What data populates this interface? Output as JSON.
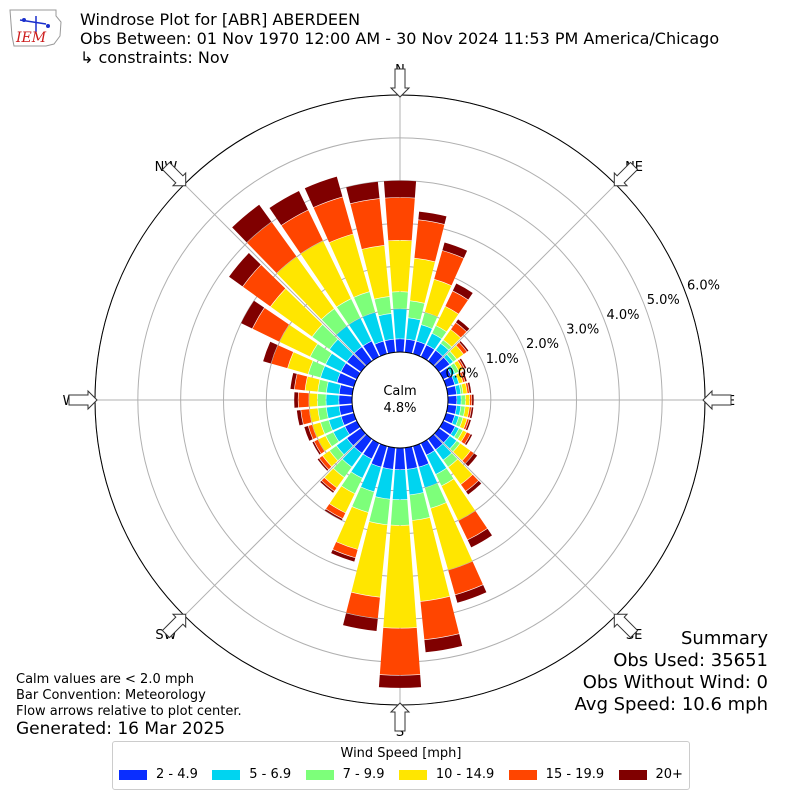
{
  "header": {
    "title": "Windrose Plot for [ABR] ABERDEEN",
    "obs_between": "Obs Between: 01 Nov 1970 12:00 AM - 30 Nov 2024 11:53 PM America/Chicago",
    "constraints": "↳ constraints: Nov"
  },
  "logo": {
    "text": "IEM"
  },
  "notes": {
    "calm": "Calm values are < 2.0 mph",
    "convention": "Bar Convention: Meteorology",
    "arrows": "Flow arrows relative to plot center."
  },
  "generated": "Generated: 16 Mar 2025",
  "summary": {
    "title": "Summary",
    "obs_used": "Obs Used: 35651",
    "obs_without_wind": "Obs Without Wind: 0",
    "avg_speed": "Avg Speed: 10.6 mph"
  },
  "legend": {
    "title": "Wind Speed [mph]",
    "items": [
      {
        "label": "2 - 4.9",
        "color": "#0a2eff"
      },
      {
        "label": "5 - 6.9",
        "color": "#00d4f0"
      },
      {
        "label": "7 - 9.9",
        "color": "#7dff7a"
      },
      {
        "label": "10 - 14.9",
        "color": "#ffe600"
      },
      {
        "label": "15 - 19.9",
        "color": "#ff4500"
      },
      {
        "label": "20+",
        "color": "#800000"
      }
    ]
  },
  "chart_data": {
    "type": "windrose",
    "calm_label": "Calm",
    "calm_value": "4.8%",
    "calm_percent": 4.8,
    "radial_ticks": [
      "0.0%",
      "1.0%",
      "2.0%",
      "3.0%",
      "4.0%",
      "5.0%",
      "6.0%"
    ],
    "radial_max": 6.0,
    "directions": [
      "N",
      "NE",
      "E",
      "SE",
      "S",
      "SW",
      "W",
      "NW"
    ],
    "bins": [
      "2 - 4.9",
      "5 - 6.9",
      "7 - 9.9",
      "10 - 14.9",
      "15 - 19.9",
      "20+"
    ],
    "sectors": [
      {
        "dir": 0,
        "cum": [
          0.3,
          1.0,
          1.4,
          2.6,
          3.6,
          4.0
        ]
      },
      {
        "dir": 10,
        "cum": [
          0.3,
          0.8,
          1.2,
          2.2,
          3.1,
          3.3
        ]
      },
      {
        "dir": 20,
        "cum": [
          0.3,
          0.7,
          1.0,
          1.8,
          2.5,
          2.7
        ]
      },
      {
        "dir": 30,
        "cum": [
          0.3,
          0.6,
          0.8,
          1.3,
          1.7,
          1.9
        ]
      },
      {
        "dir": 40,
        "cum": [
          0.3,
          0.5,
          0.6,
          0.9,
          1.1,
          1.2
        ]
      },
      {
        "dir": 50,
        "cum": [
          0.3,
          0.4,
          0.5,
          0.7,
          0.8,
          0.85
        ]
      },
      {
        "dir": 60,
        "cum": [
          0.2,
          0.3,
          0.4,
          0.5,
          0.55,
          0.6
        ]
      },
      {
        "dir": 70,
        "cum": [
          0.2,
          0.3,
          0.3,
          0.4,
          0.45,
          0.5
        ]
      },
      {
        "dir": 80,
        "cum": [
          0.2,
          0.3,
          0.35,
          0.45,
          0.5,
          0.55
        ]
      },
      {
        "dir": 90,
        "cum": [
          0.2,
          0.3,
          0.4,
          0.5,
          0.55,
          0.6
        ]
      },
      {
        "dir": 100,
        "cum": [
          0.2,
          0.3,
          0.4,
          0.5,
          0.55,
          0.6
        ]
      },
      {
        "dir": 110,
        "cum": [
          0.2,
          0.3,
          0.4,
          0.5,
          0.55,
          0.6
        ]
      },
      {
        "dir": 120,
        "cum": [
          0.3,
          0.4,
          0.5,
          0.6,
          0.7,
          0.75
        ]
      },
      {
        "dir": 130,
        "cum": [
          0.3,
          0.5,
          0.6,
          0.9,
          1.0,
          1.1
        ]
      },
      {
        "dir": 140,
        "cum": [
          0.3,
          0.6,
          0.8,
          1.3,
          1.5,
          1.6
        ]
      },
      {
        "dir": 150,
        "cum": [
          0.3,
          0.8,
          1.1,
          2.0,
          2.5,
          2.7
        ]
      },
      {
        "dir": 160,
        "cum": [
          0.5,
          1.0,
          1.5,
          3.0,
          3.6,
          3.8
        ]
      },
      {
        "dir": 170,
        "cum": [
          0.5,
          1.1,
          1.7,
          3.6,
          4.5,
          4.8
        ]
      },
      {
        "dir": 180,
        "cum": [
          0.5,
          1.2,
          1.8,
          4.2,
          5.3,
          5.6
        ]
      },
      {
        "dir": 190,
        "cum": [
          0.5,
          1.2,
          1.8,
          3.5,
          4.0,
          4.3
        ]
      },
      {
        "dir": 200,
        "cum": [
          0.5,
          1.1,
          1.6,
          2.5,
          2.7,
          2.8
        ]
      },
      {
        "dir": 210,
        "cum": [
          0.4,
          0.9,
          1.3,
          1.8,
          1.95,
          2.0
        ]
      },
      {
        "dir": 220,
        "cum": [
          0.4,
          0.8,
          1.1,
          1.4,
          1.5,
          1.55
        ]
      },
      {
        "dir": 230,
        "cum": [
          0.4,
          0.7,
          0.9,
          1.1,
          1.2,
          1.25
        ]
      },
      {
        "dir": 240,
        "cum": [
          0.3,
          0.6,
          0.8,
          1.0,
          1.1,
          1.15
        ]
      },
      {
        "dir": 250,
        "cum": [
          0.3,
          0.6,
          0.8,
          1.0,
          1.1,
          1.2
        ]
      },
      {
        "dir": 260,
        "cum": [
          0.3,
          0.6,
          0.8,
          1.0,
          1.2,
          1.3
        ]
      },
      {
        "dir": 270,
        "cum": [
          0.3,
          0.6,
          0.8,
          1.0,
          1.25,
          1.35
        ]
      },
      {
        "dir": 280,
        "cum": [
          0.3,
          0.6,
          0.8,
          1.1,
          1.35,
          1.45
        ]
      },
      {
        "dir": 290,
        "cum": [
          0.4,
          0.8,
          1.1,
          1.6,
          2.0,
          2.2
        ]
      },
      {
        "dir": 300,
        "cum": [
          0.4,
          0.8,
          1.2,
          2.0,
          2.7,
          3.0
        ]
      },
      {
        "dir": 310,
        "cum": [
          0.4,
          0.9,
          1.4,
          2.6,
          3.4,
          3.8
        ]
      },
      {
        "dir": 320,
        "cum": [
          0.4,
          1.0,
          1.5,
          3.0,
          4.0,
          4.5
        ]
      },
      {
        "dir": 330,
        "cum": [
          0.4,
          1.0,
          1.5,
          3.0,
          3.8,
          4.3
        ]
      },
      {
        "dir": 340,
        "cum": [
          0.3,
          1.0,
          1.5,
          2.9,
          3.8,
          4.3
        ]
      },
      {
        "dir": 350,
        "cum": [
          0.3,
          0.9,
          1.3,
          2.5,
          3.6,
          4.0
        ]
      }
    ]
  }
}
